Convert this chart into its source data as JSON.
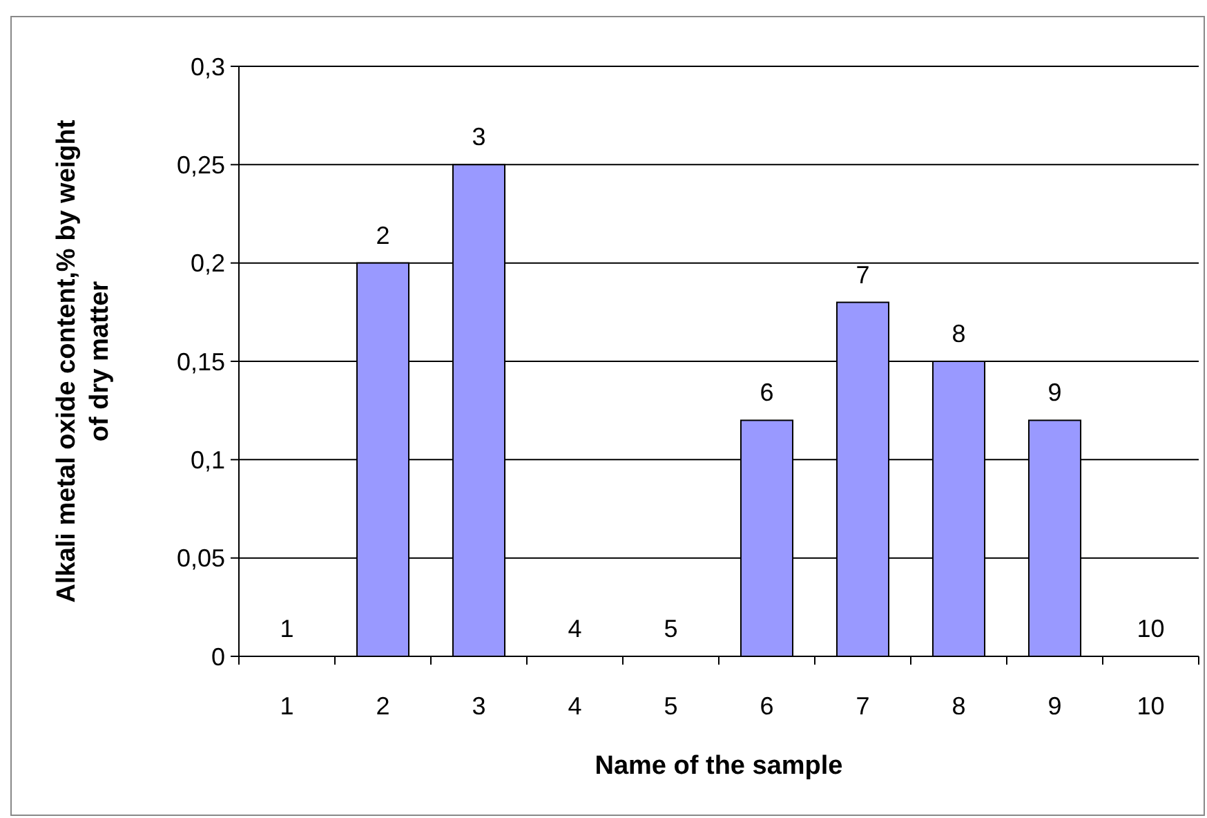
{
  "chart_data": {
    "type": "bar",
    "xlabel": "Name of the sample",
    "ylabel": "Alkali metal oxide content,% by weight of dry matter",
    "categories": [
      "1",
      "2",
      "3",
      "4",
      "5",
      "6",
      "7",
      "8",
      "9",
      "10"
    ],
    "values": [
      0,
      0.2,
      0.25,
      0,
      0,
      0.12,
      0.18,
      0.15,
      0.12,
      0
    ],
    "annotations": [
      {
        "text": "1",
        "x": "1",
        "y": 0
      },
      {
        "text": "2",
        "x": "2",
        "y": 0.2
      },
      {
        "text": "3",
        "x": "3",
        "y": 0.25
      },
      {
        "text": "4",
        "x": "4",
        "y": 0
      },
      {
        "text": "5",
        "x": "5",
        "y": 0
      },
      {
        "text": "6",
        "x": "6",
        "y": 0.12
      },
      {
        "text": "7",
        "x": "7",
        "y": 0.18
      },
      {
        "text": "8",
        "x": "8",
        "y": 0.15
      },
      {
        "text": "9",
        "x": "9",
        "y": 0.12
      },
      {
        "text": "10",
        "x": "10",
        "y": 0
      }
    ],
    "color": "#9999ff",
    "ylim": [
      0,
      0.3
    ],
    "yticks": [
      0,
      {
        "value": 0.05,
        "label": "0,05"
      },
      {
        "value": 0.1,
        "label": "0,1"
      },
      {
        "value": 0.15,
        "label": "0,15"
      },
      {
        "value": 0.2,
        "label": "0,2"
      },
      {
        "value": 0.25,
        "label": "0,25"
      },
      {
        "value": 0.3,
        "label": "0,3"
      }
    ],
    "grid": "y"
  }
}
